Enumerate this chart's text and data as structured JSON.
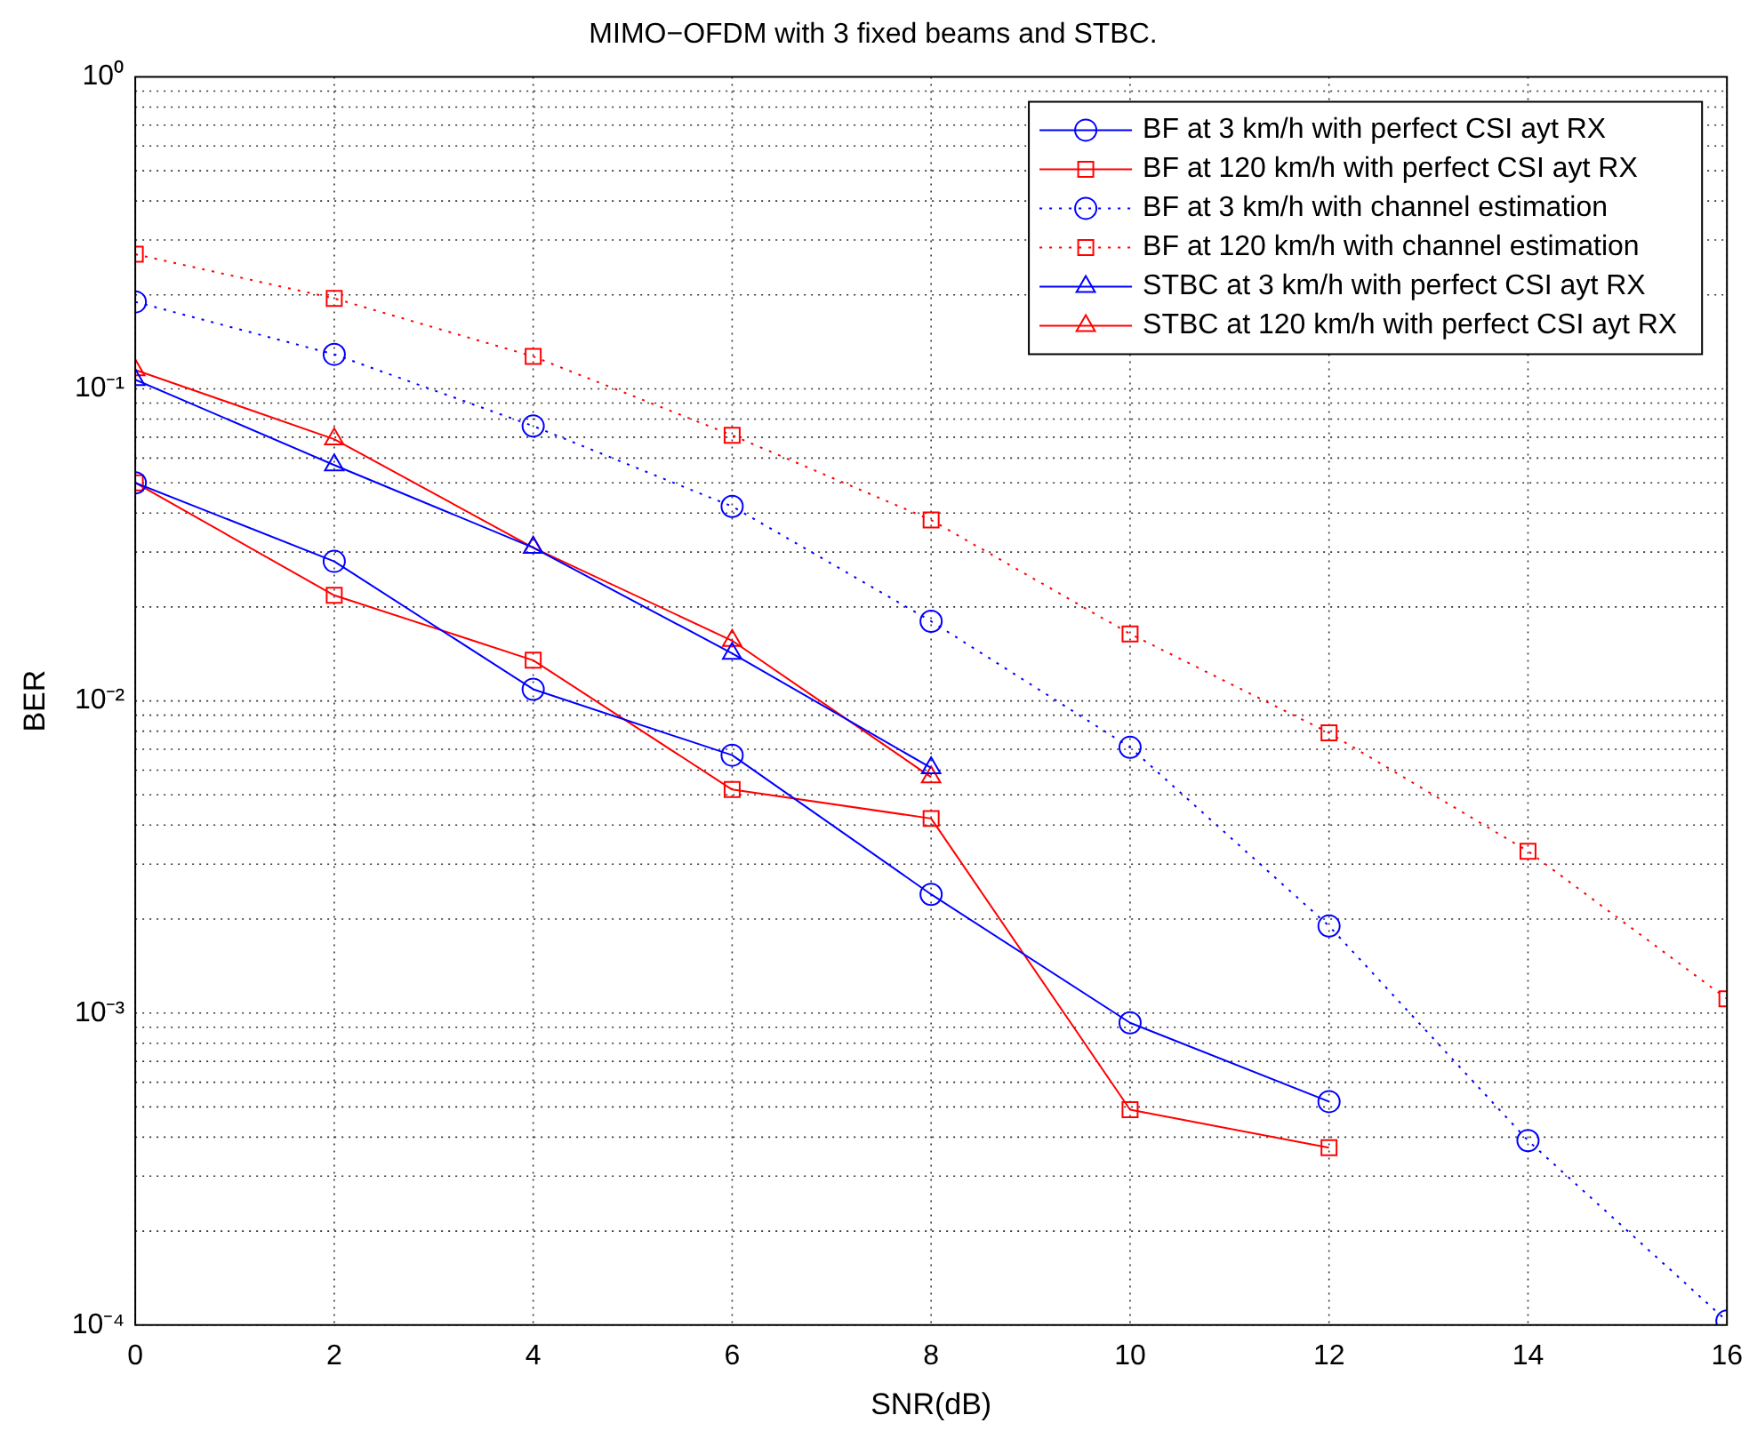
{
  "chart_data": {
    "type": "line",
    "title": "MIMO−OFDM with 3 fixed beams and STBC.",
    "xlabel": "SNR(dB)",
    "ylabel": "BER",
    "x": [
      0,
      2,
      4,
      6,
      8,
      10,
      12,
      14,
      16
    ],
    "xlim": [
      0,
      16
    ],
    "xticks": [
      0,
      2,
      4,
      6,
      8,
      10,
      12,
      14,
      16
    ],
    "ylim": [
      0.0001,
      1
    ],
    "yticks": [
      {
        "value": 0.0001,
        "label": "10⁻⁴"
      },
      {
        "value": 0.001,
        "label": "10⁻³"
      },
      {
        "value": 0.01,
        "label": "10⁻²"
      },
      {
        "value": 0.1,
        "label": "10⁻¹"
      },
      {
        "value": 1,
        "label": "10⁰"
      }
    ],
    "log": "y",
    "grid": true,
    "legend": "top right",
    "series": [
      {
        "name": "BF at 3 km/h with perfect CSI ayt RX",
        "color": "#0000ff",
        "marker": "circle",
        "line_style": "solid",
        "values": [
          0.05,
          0.028,
          0.0109,
          0.0067,
          0.0024,
          0.00093,
          0.00052,
          null,
          null
        ]
      },
      {
        "name": "BF at 120 km/h with perfect CSI ayt RX",
        "color": "#ff0000",
        "marker": "square",
        "line_style": "solid",
        "values": [
          0.05,
          0.0218,
          0.0135,
          0.0052,
          0.0042,
          0.00049,
          0.00037,
          null,
          null
        ]
      },
      {
        "name": "BF at 3 km/h with channel estimation",
        "color": "#0000ff",
        "marker": "circle",
        "line_style": "dotted",
        "values": [
          0.19,
          0.129,
          0.076,
          0.042,
          0.018,
          0.0071,
          0.0019,
          0.00039,
          0.000103
        ]
      },
      {
        "name": "BF at 120 km/h with channel estimation",
        "color": "#ff0000",
        "marker": "square",
        "line_style": "dotted",
        "values": [
          0.27,
          0.195,
          0.127,
          0.071,
          0.038,
          0.0164,
          0.0079,
          0.0033,
          0.00111
        ]
      },
      {
        "name": "STBC at 3 km/h with perfect CSI ayt RX",
        "color": "#0000ff",
        "marker": "triangle",
        "line_style": "solid",
        "values": [
          0.107,
          0.057,
          0.031,
          0.0142,
          0.0061,
          null,
          null,
          null,
          null
        ]
      },
      {
        "name": "STBC at 120 km/h with perfect CSI ayt RX",
        "color": "#ff0000",
        "marker": "triangle",
        "line_style": "solid",
        "values": [
          0.115,
          0.069,
          0.031,
          0.0156,
          0.0057,
          null,
          null,
          null,
          null
        ]
      }
    ]
  }
}
